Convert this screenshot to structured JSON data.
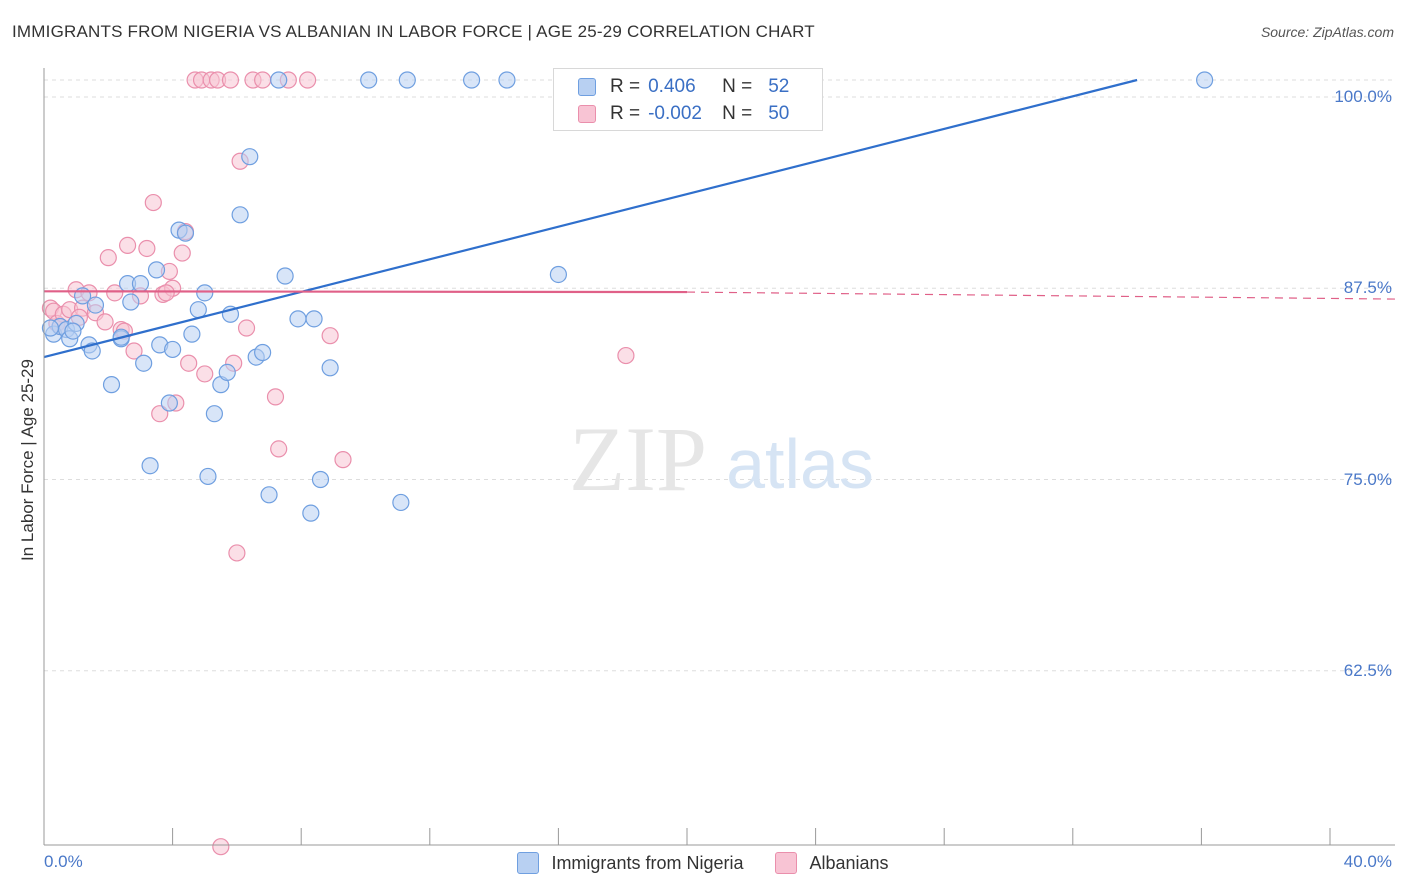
{
  "title": "IMMIGRANTS FROM NIGERIA VS ALBANIAN IN LABOR FORCE | AGE 25-29 CORRELATION CHART",
  "source": "Source: ZipAtlas.com",
  "watermark": {
    "zip": "ZIP",
    "atlas": "atlas"
  },
  "colors": {
    "nigeria_fill": "#b8d0f2",
    "nigeria_stroke": "#6f9fe0",
    "nigeria_line": "#2f6fcc",
    "albanian_fill": "#f8c4d4",
    "albanian_stroke": "#ea8fac",
    "albanian_line": "#e06088",
    "tick_label": "#4a78c8",
    "grid": "#dddddd"
  },
  "legend": {
    "rows": [
      {
        "r_label": "R =",
        "r_value": "0.406",
        "n_label": "N =",
        "n_value": "52"
      },
      {
        "r_label": "R =",
        "r_value": "-0.002",
        "n_label": "N =",
        "n_value": "50"
      }
    ]
  },
  "chart_data": {
    "type": "scatter",
    "xlabel": "",
    "ylabel": "In Labor Force | Age 25-29",
    "xlim": [
      0,
      40
    ],
    "ylim": [
      50,
      100.5
    ],
    "x_tick_labels": [
      "0.0%",
      "40.0%"
    ],
    "y_ticks": [
      62.5,
      75.0,
      87.5,
      100.0
    ],
    "y_tick_labels": [
      "62.5%",
      "75.0%",
      "87.5%",
      "100.0%"
    ],
    "legend_position": "top-center",
    "grid": true,
    "series": [
      {
        "name": "Immigrants from Nigeria",
        "color": "#6f9fe0",
        "trend": {
          "x": [
            0,
            34.0
          ],
          "y": [
            83.0,
            100.5
          ],
          "dashed_extension": false
        },
        "points": [
          [
            0.3,
            84.5
          ],
          [
            0.5,
            85.0
          ],
          [
            0.7,
            84.8
          ],
          [
            0.8,
            84.2
          ],
          [
            1.0,
            85.2
          ],
          [
            1.2,
            87.0
          ],
          [
            1.4,
            83.8
          ],
          [
            1.5,
            83.4
          ],
          [
            1.6,
            86.4
          ],
          [
            2.1,
            81.2
          ],
          [
            2.4,
            84.2
          ],
          [
            2.6,
            87.8
          ],
          [
            2.7,
            86.6
          ],
          [
            3.0,
            87.8
          ],
          [
            3.1,
            82.6
          ],
          [
            3.3,
            75.9
          ],
          [
            3.5,
            88.7
          ],
          [
            3.6,
            83.8
          ],
          [
            3.9,
            80.0
          ],
          [
            4.0,
            83.5
          ],
          [
            4.2,
            91.3
          ],
          [
            4.4,
            91.1
          ],
          [
            4.6,
            84.5
          ],
          [
            4.8,
            86.1
          ],
          [
            5.0,
            87.2
          ],
          [
            5.1,
            75.2
          ],
          [
            5.3,
            79.3
          ],
          [
            5.5,
            81.2
          ],
          [
            5.7,
            82.0
          ],
          [
            5.8,
            85.8
          ],
          [
            6.1,
            92.3
          ],
          [
            6.4,
            96.1
          ],
          [
            6.6,
            83.0
          ],
          [
            6.8,
            83.3
          ],
          [
            7.0,
            74.0
          ],
          [
            7.3,
            100.0
          ],
          [
            7.5,
            88.3
          ],
          [
            7.9,
            85.5
          ],
          [
            8.3,
            72.8
          ],
          [
            8.4,
            85.5
          ],
          [
            8.6,
            75.0
          ],
          [
            8.9,
            82.3
          ],
          [
            10.1,
            100.0
          ],
          [
            11.1,
            73.5
          ],
          [
            11.3,
            100.0
          ],
          [
            13.3,
            100.0
          ],
          [
            14.4,
            100.0
          ],
          [
            16.0,
            88.4
          ],
          [
            36.1,
            100.0
          ],
          [
            0.2,
            84.9
          ],
          [
            2.4,
            84.3
          ],
          [
            0.9,
            84.7
          ]
        ]
      },
      {
        "name": "Albanians",
        "color": "#ea8fac",
        "trend": {
          "x": [
            0,
            20.0
          ],
          "y": [
            87.3,
            87.25
          ],
          "dashed_extension": true,
          "dashed_to_x": 40
        },
        "points": [
          [
            0.2,
            86.2
          ],
          [
            0.3,
            86.0
          ],
          [
            0.4,
            85.2
          ],
          [
            0.6,
            85.8
          ],
          [
            0.8,
            86.1
          ],
          [
            1.0,
            87.4
          ],
          [
            1.2,
            86.2
          ],
          [
            1.4,
            87.2
          ],
          [
            1.6,
            85.9
          ],
          [
            1.9,
            85.3
          ],
          [
            2.0,
            89.5
          ],
          [
            2.2,
            87.2
          ],
          [
            2.4,
            84.8
          ],
          [
            2.6,
            90.3
          ],
          [
            2.8,
            83.4
          ],
          [
            3.0,
            87.0
          ],
          [
            3.2,
            90.1
          ],
          [
            3.4,
            93.1
          ],
          [
            3.6,
            79.3
          ],
          [
            3.7,
            87.1
          ],
          [
            3.9,
            88.6
          ],
          [
            4.0,
            87.5
          ],
          [
            4.1,
            80.0
          ],
          [
            4.3,
            89.8
          ],
          [
            4.4,
            91.2
          ],
          [
            4.5,
            82.6
          ],
          [
            4.7,
            100.0
          ],
          [
            4.9,
            100.0
          ],
          [
            5.0,
            81.9
          ],
          [
            5.2,
            100.0
          ],
          [
            5.4,
            100.0
          ],
          [
            5.5,
            51.0
          ],
          [
            5.8,
            100.0
          ],
          [
            5.9,
            82.6
          ],
          [
            6.0,
            70.2
          ],
          [
            6.1,
            95.8
          ],
          [
            6.3,
            84.9
          ],
          [
            6.5,
            100.0
          ],
          [
            6.8,
            100.0
          ],
          [
            7.2,
            80.4
          ],
          [
            7.3,
            77.0
          ],
          [
            7.6,
            100.0
          ],
          [
            8.2,
            100.0
          ],
          [
            8.9,
            84.4
          ],
          [
            9.3,
            76.3
          ],
          [
            18.1,
            83.1
          ],
          [
            0.5,
            85.0
          ],
          [
            1.1,
            85.6
          ],
          [
            2.5,
            84.7
          ],
          [
            3.8,
            87.2
          ]
        ]
      }
    ]
  }
}
